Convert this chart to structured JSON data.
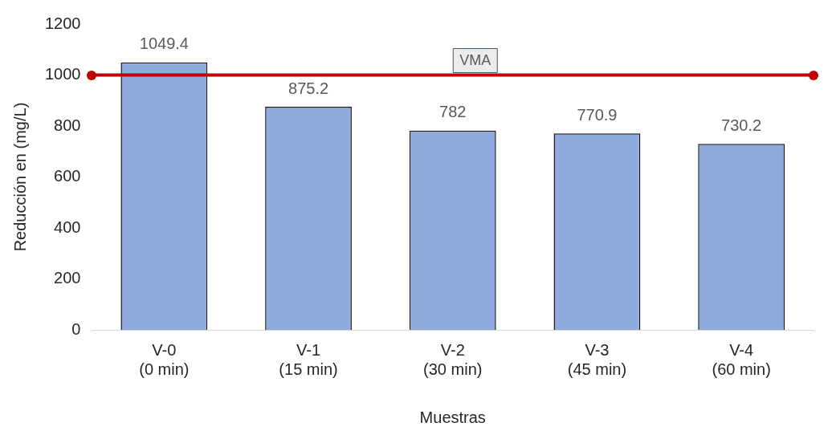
{
  "chart_data": {
    "type": "bar",
    "xlabel": "Muestras",
    "ylabel": "Reducción en (mg/L)",
    "categories": [
      "V-0\n(0 min)",
      "V-1\n(15 min)",
      "V-2\n(30 min)",
      "V-3\n(45 min)",
      "V-4\n(60 min)"
    ],
    "values": [
      1049.4,
      875.2,
      782,
      770.9,
      730.2
    ],
    "color": "#8faadc",
    "ylim": [
      0,
      1200
    ],
    "yticks": [
      0,
      200,
      400,
      600,
      800,
      1000,
      1200
    ],
    "grid": false,
    "data_labels": true,
    "legend": false,
    "ref_lines": [
      {
        "axis": "y",
        "value": 1000,
        "label": "VMA",
        "color": "#c00000"
      }
    ]
  }
}
